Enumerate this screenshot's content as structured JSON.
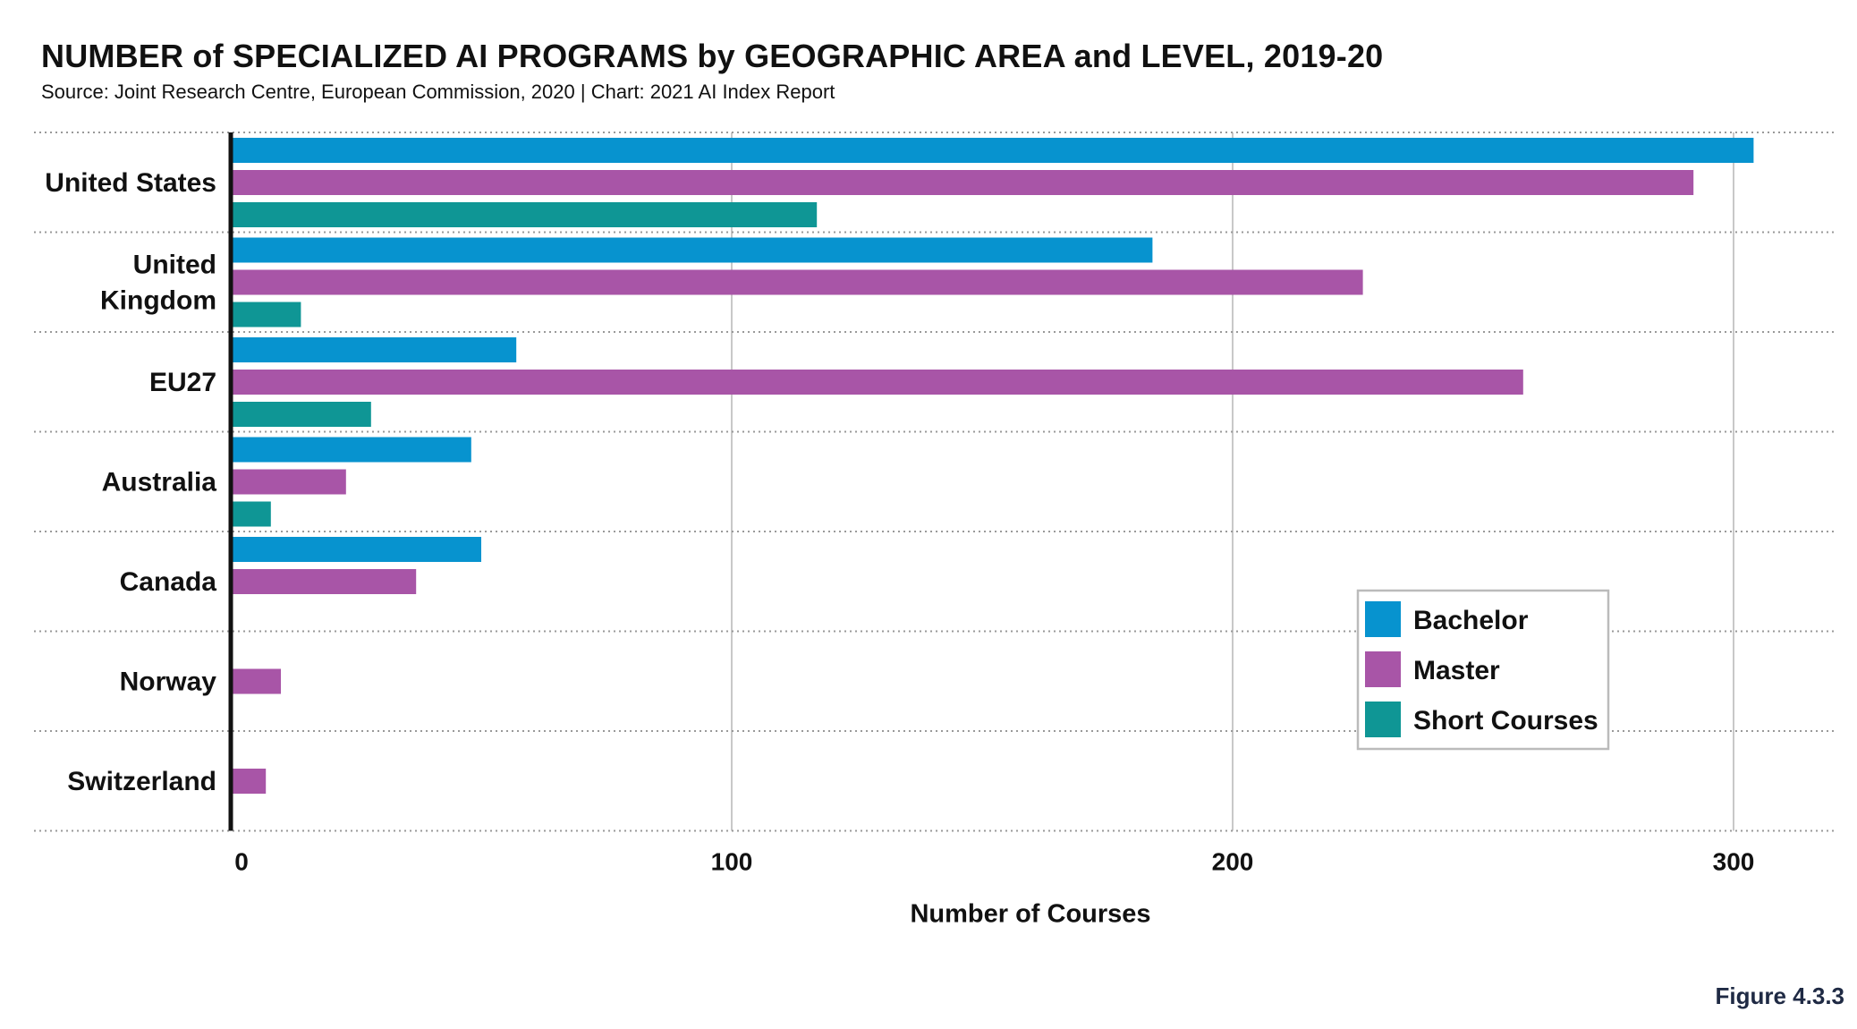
{
  "title": "NUMBER of SPECIALIZED AI PROGRAMS by GEOGRAPHIC AREA and LEVEL, 2019-20",
  "subtitle": "Source: Joint Research Centre, European Commission, 2020 | Chart: 2021 AI Index Report",
  "figure_label": "Figure 4.3.3",
  "colors": {
    "bachelor": "#0793cf",
    "master": "#a855a7",
    "short_courses": "#0f9695",
    "axis": "#111111",
    "grid": "#c8c8c8",
    "divider": "#999999"
  },
  "chart_data": {
    "type": "bar",
    "orientation": "horizontal",
    "categories": [
      [
        "United States"
      ],
      [
        "United",
        "Kingdom"
      ],
      [
        "EU27"
      ],
      [
        "Australia"
      ],
      [
        "Canada"
      ],
      [
        "Norway"
      ],
      [
        "Switzerland"
      ]
    ],
    "series": [
      {
        "name": "Bachelor",
        "color_key": "bachelor",
        "values": [
          304,
          184,
          57,
          48,
          50,
          0,
          0
        ]
      },
      {
        "name": "Master",
        "color_key": "master",
        "values": [
          292,
          226,
          258,
          23,
          37,
          10,
          7
        ]
      },
      {
        "name": "Short Courses",
        "color_key": "short_courses",
        "values": [
          117,
          14,
          28,
          8,
          0,
          0,
          0
        ]
      }
    ],
    "xlabel": "Number of Courses",
    "ylabel": "",
    "xlim": [
      0,
      320
    ],
    "xticks": [
      0,
      100,
      200,
      300
    ],
    "grid": true,
    "legend_position": "bottom-right"
  }
}
